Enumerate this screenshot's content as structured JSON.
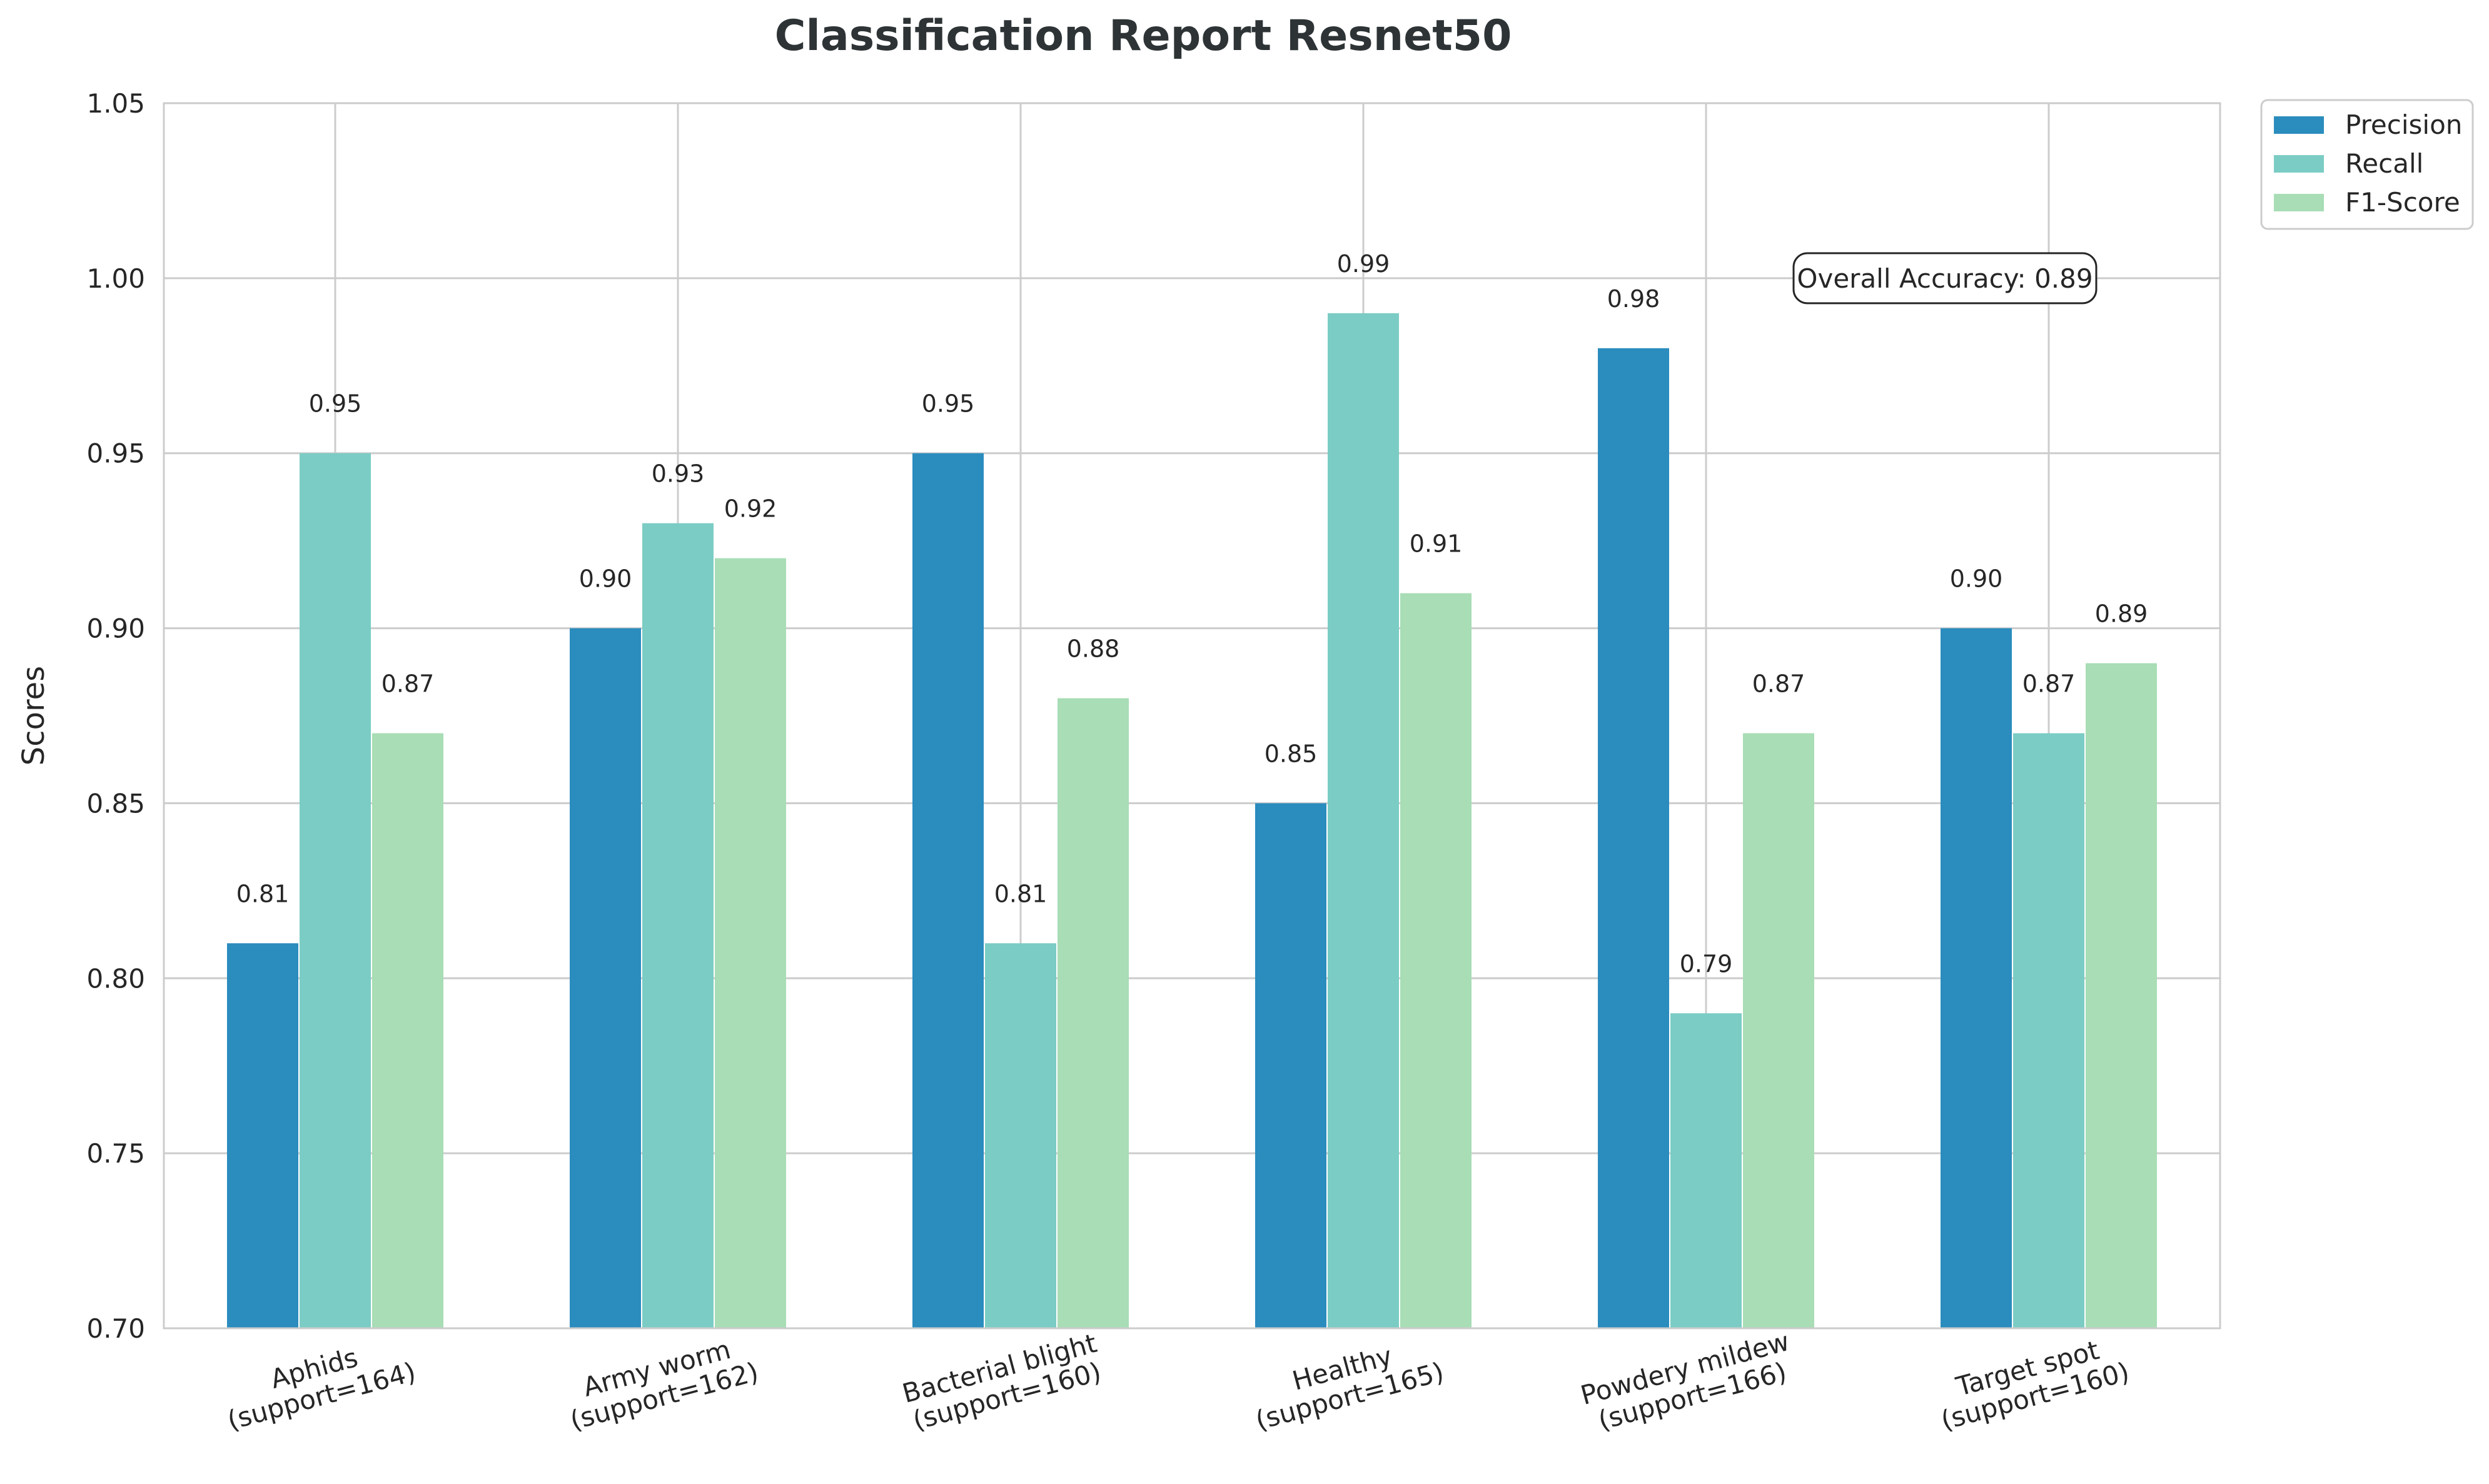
{
  "chart_data": {
    "type": "bar",
    "title": "Classification Report Resnet50",
    "xlabel": "",
    "ylabel": "Scores",
    "ylim": [
      0.7,
      1.05
    ],
    "yticks": [
      "0.70",
      "0.75",
      "0.80",
      "0.85",
      "0.90",
      "0.95",
      "1.00",
      "1.05"
    ],
    "categories": [
      [
        "Aphids",
        "(support=164)"
      ],
      [
        "Army worm",
        "(support=162)"
      ],
      [
        "Bacterial blight",
        "(support=160)"
      ],
      [
        "Healthy",
        "(support=165)"
      ],
      [
        "Powdery mildew",
        "(support=166)"
      ],
      [
        "Target spot",
        "(support=160)"
      ]
    ],
    "series": [
      {
        "name": "Precision",
        "color": "#2b8cbe",
        "values": [
          0.81,
          0.9,
          0.95,
          0.85,
          0.98,
          0.9
        ],
        "labels": [
          "0.81",
          "0.90",
          "0.95",
          "0.85",
          "0.98",
          "0.90"
        ]
      },
      {
        "name": "Recall",
        "color": "#7bccc4",
        "values": [
          0.95,
          0.93,
          0.81,
          0.99,
          0.79,
          0.87
        ],
        "labels": [
          "0.95",
          "0.93",
          "0.81",
          "0.99",
          "0.79",
          "0.87"
        ]
      },
      {
        "name": "F1-Score",
        "color": "#a8ddb5",
        "values": [
          0.87,
          0.92,
          0.88,
          0.91,
          0.87,
          0.89
        ],
        "labels": [
          "0.87",
          "0.92",
          "0.88",
          "0.91",
          "0.87",
          "0.89"
        ]
      }
    ],
    "annotation": "Overall Accuracy: 0.89",
    "grid": true,
    "legend_position": "outside-top-right"
  }
}
